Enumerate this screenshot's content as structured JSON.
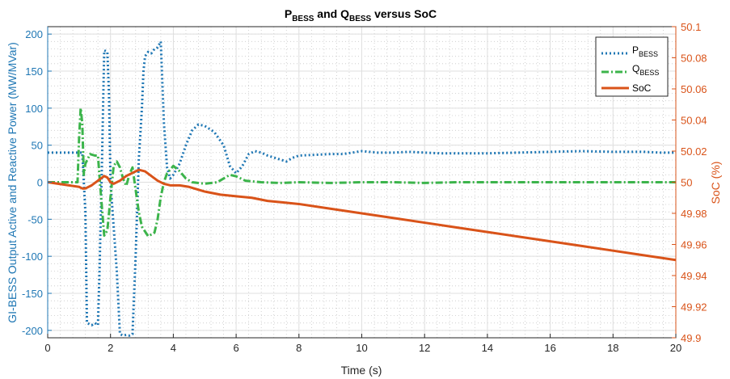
{
  "chart_data": {
    "type": "line",
    "title": {
      "p": "P",
      "p_sub": "BESS",
      "and": " and ",
      "q": "Q",
      "q_sub": "BESS",
      "rest": " versus SoC"
    },
    "xlabel": "Time (s)",
    "ylabel_left": "GI-BESS Output Active and Reactive Power (MW/MVar)",
    "ylabel_right": "SoC (%)",
    "xlim": [
      0,
      20
    ],
    "ylim_left": [
      -210,
      210
    ],
    "ylim_right": [
      49.9,
      50.1
    ],
    "x_ticks": [
      0,
      2,
      4,
      6,
      8,
      10,
      12,
      14,
      16,
      18,
      20
    ],
    "x_tick_labels": [
      "0",
      "2",
      "4",
      "6",
      "8",
      "10",
      "12",
      "14",
      "16",
      "18",
      "20"
    ],
    "y_left_ticks": [
      200,
      150,
      100,
      50,
      0,
      -50,
      -100,
      -150,
      -200
    ],
    "y_left_tick_labels": [
      "200",
      "150",
      "100",
      "50",
      "0",
      "-50",
      "-100",
      "-150",
      "-200"
    ],
    "y_right_ticks": [
      50.1,
      50.08,
      50.06,
      50.04,
      50.02,
      50.0,
      49.98,
      49.96,
      49.94,
      49.92,
      49.9
    ],
    "y_right_tick_labels": [
      "50.1",
      "50.08",
      "50.06",
      "50.04",
      "50.02",
      "50",
      "49.98",
      "49.96",
      "49.94",
      "49.92",
      "49.9"
    ],
    "grid": true,
    "minor_grid": true,
    "legend_position": "top-right",
    "series": [
      {
        "name": "P",
        "name_sub": "BESS",
        "axis": "left",
        "color": "#1f77b4",
        "style": "dotted",
        "points": [
          [
            0,
            40
          ],
          [
            1.1,
            40
          ],
          [
            1.2,
            -40
          ],
          [
            1.25,
            -190
          ],
          [
            1.4,
            -193
          ],
          [
            1.5,
            -190
          ],
          [
            1.6,
            -193
          ],
          [
            1.65,
            -120
          ],
          [
            1.72,
            10
          ],
          [
            1.8,
            178
          ],
          [
            1.9,
            176
          ],
          [
            1.95,
            120
          ],
          [
            2.0,
            0
          ],
          [
            2.1,
            -60
          ],
          [
            2.2,
            -120
          ],
          [
            2.3,
            -205
          ],
          [
            2.4,
            -207
          ],
          [
            2.5,
            -206
          ],
          [
            2.6,
            -207
          ],
          [
            2.7,
            -205
          ],
          [
            2.8,
            -100
          ],
          [
            2.9,
            30
          ],
          [
            3.0,
            100
          ],
          [
            3.05,
            150
          ],
          [
            3.1,
            170
          ],
          [
            3.2,
            176
          ],
          [
            3.3,
            174
          ],
          [
            3.4,
            180
          ],
          [
            3.5,
            182
          ],
          [
            3.6,
            190
          ],
          [
            3.7,
            80
          ],
          [
            3.8,
            20
          ],
          [
            3.9,
            5
          ],
          [
            4.0,
            10
          ],
          [
            4.2,
            25
          ],
          [
            4.4,
            50
          ],
          [
            4.6,
            70
          ],
          [
            4.8,
            78
          ],
          [
            5.0,
            76
          ],
          [
            5.3,
            68
          ],
          [
            5.6,
            50
          ],
          [
            5.8,
            22
          ],
          [
            6.0,
            12
          ],
          [
            6.2,
            22
          ],
          [
            6.4,
            38
          ],
          [
            6.6,
            42
          ],
          [
            6.8,
            40
          ],
          [
            7.0,
            36
          ],
          [
            7.3,
            32
          ],
          [
            7.6,
            28
          ],
          [
            7.8,
            33
          ],
          [
            8.0,
            36
          ],
          [
            8.5,
            37
          ],
          [
            9.0,
            38
          ],
          [
            9.4,
            38
          ],
          [
            10.0,
            42
          ],
          [
            10.5,
            40
          ],
          [
            11.0,
            40
          ],
          [
            11.5,
            41
          ],
          [
            12.0,
            40
          ],
          [
            12.5,
            39
          ],
          [
            13.0,
            39
          ],
          [
            14.0,
            39
          ],
          [
            15.0,
            40
          ],
          [
            16.0,
            41
          ],
          [
            17.0,
            42
          ],
          [
            18.0,
            41
          ],
          [
            19.0,
            41
          ],
          [
            19.5,
            40
          ],
          [
            20.0,
            40
          ]
        ]
      },
      {
        "name": "Q",
        "name_sub": "BESS",
        "axis": "left",
        "color": "#3cb44b",
        "style": "dash-dot",
        "points": [
          [
            0,
            0
          ],
          [
            0.95,
            0
          ],
          [
            1.0,
            60
          ],
          [
            1.05,
            100
          ],
          [
            1.1,
            80
          ],
          [
            1.15,
            10
          ],
          [
            1.2,
            25
          ],
          [
            1.35,
            38
          ],
          [
            1.5,
            36
          ],
          [
            1.6,
            36
          ],
          [
            1.7,
            -20
          ],
          [
            1.8,
            -72
          ],
          [
            1.9,
            -65
          ],
          [
            2.0,
            -20
          ],
          [
            2.1,
            22
          ],
          [
            2.2,
            28
          ],
          [
            2.3,
            20
          ],
          [
            2.4,
            5
          ],
          [
            2.5,
            -5
          ],
          [
            2.6,
            10
          ],
          [
            2.7,
            20
          ],
          [
            2.8,
            -10
          ],
          [
            2.9,
            -40
          ],
          [
            3.0,
            -60
          ],
          [
            3.2,
            -73
          ],
          [
            3.4,
            -68
          ],
          [
            3.5,
            -50
          ],
          [
            3.6,
            -20
          ],
          [
            3.7,
            0
          ],
          [
            3.8,
            12
          ],
          [
            4.0,
            22
          ],
          [
            4.2,
            15
          ],
          [
            4.4,
            5
          ],
          [
            4.6,
            0
          ],
          [
            5.0,
            -2
          ],
          [
            5.4,
            0
          ],
          [
            5.8,
            10
          ],
          [
            6.0,
            8
          ],
          [
            6.3,
            2
          ],
          [
            6.8,
            0
          ],
          [
            7.4,
            -1
          ],
          [
            8.0,
            0
          ],
          [
            9.0,
            -1
          ],
          [
            10.0,
            0
          ],
          [
            11.0,
            0
          ],
          [
            12.0,
            -1
          ],
          [
            13.0,
            0
          ],
          [
            14.0,
            0
          ],
          [
            15.0,
            0
          ],
          [
            16.0,
            0
          ],
          [
            17.0,
            0
          ],
          [
            18.0,
            0
          ],
          [
            19.0,
            0
          ],
          [
            20.0,
            0
          ]
        ]
      },
      {
        "name": "SoC",
        "axis": "right",
        "color": "#d95319",
        "style": "solid",
        "points": [
          [
            0,
            50.0
          ],
          [
            1.0,
            49.997
          ],
          [
            1.1,
            49.996
          ],
          [
            1.2,
            49.996
          ],
          [
            1.4,
            49.998
          ],
          [
            1.6,
            50.001
          ],
          [
            1.8,
            50.004
          ],
          [
            1.9,
            50.003
          ],
          [
            2.0,
            50.0
          ],
          [
            2.1,
            49.999
          ],
          [
            2.3,
            50.001
          ],
          [
            2.5,
            50.004
          ],
          [
            2.7,
            50.006
          ],
          [
            2.9,
            50.008
          ],
          [
            3.1,
            50.007
          ],
          [
            3.3,
            50.004
          ],
          [
            3.5,
            50.001
          ],
          [
            3.7,
            49.999
          ],
          [
            3.9,
            49.998
          ],
          [
            4.2,
            49.998
          ],
          [
            4.5,
            49.997
          ],
          [
            5.0,
            49.994
          ],
          [
            5.5,
            49.992
          ],
          [
            6.0,
            49.991
          ],
          [
            6.5,
            49.99
          ],
          [
            7.0,
            49.988
          ],
          [
            7.5,
            49.987
          ],
          [
            8.0,
            49.986
          ],
          [
            9.0,
            49.983
          ],
          [
            10.0,
            49.98
          ],
          [
            11.0,
            49.977
          ],
          [
            12.0,
            49.974
          ],
          [
            13.0,
            49.971
          ],
          [
            14.0,
            49.968
          ],
          [
            15.0,
            49.965
          ],
          [
            16.0,
            49.962
          ],
          [
            17.0,
            49.959
          ],
          [
            18.0,
            49.956
          ],
          [
            19.0,
            49.953
          ],
          [
            20.0,
            49.95
          ]
        ]
      }
    ]
  }
}
